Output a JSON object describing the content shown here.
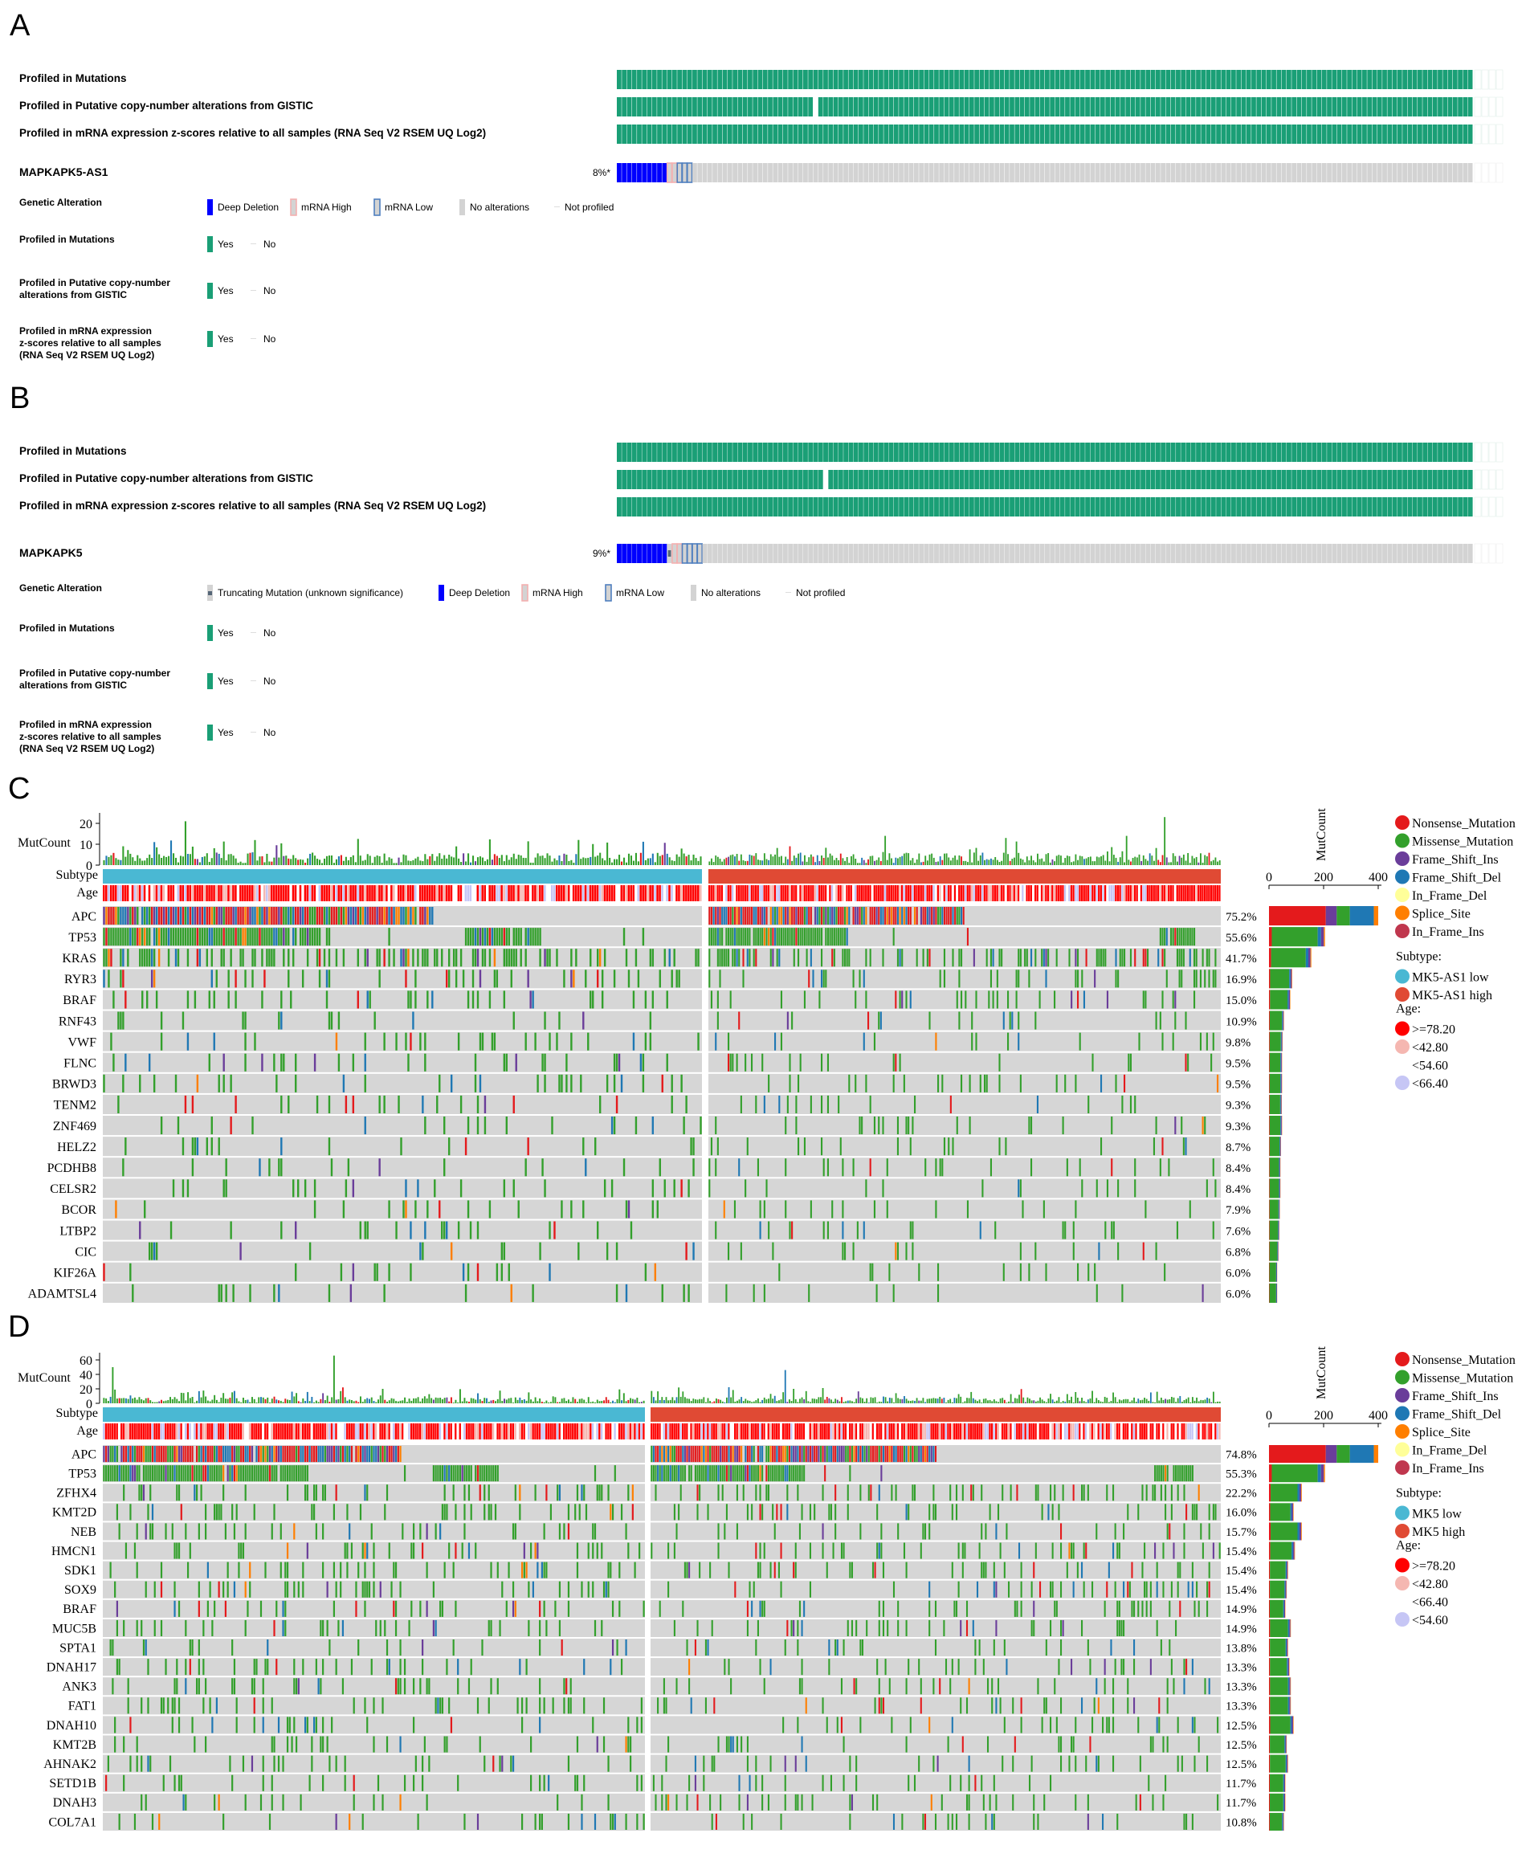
{
  "palette": {
    "green": "#1a9f76",
    "nonsense": "#e41a1c",
    "missense": "#33a02c",
    "frameshift_ins": "#6a3d9a",
    "frameshift_del": "#1f78b4",
    "inframe_del": "#ffff99",
    "splice": "#ff7f00",
    "inframe_ins": "#c0374e",
    "subtype_low": "#4ab8d3",
    "subtype_high": "#e04a34",
    "deep_del": "#0000ff",
    "mrna_high": "#f4b0b0",
    "mrna_low": "#9bb9de",
    "no_alt": "#d3d3d3",
    "trunc": "#556677",
    "age1": "#ff0000",
    "age2": "#f5b7b1",
    "age3": "#ffffff",
    "age4": "#c6c6f5"
  },
  "panels": [
    {
      "letter": "A",
      "rows": [
        "Profiled in Mutations",
        "Profiled in Putative copy-number alterations from GISTIC",
        "Profiled in mRNA expression z-scores relative to all samples (RNA Seq V2 RSEM UQ Log2)"
      ],
      "gene": "MAPKAPK5-AS1",
      "pct": "8%*",
      "legend": {
        "genetic_title": "Genetic Alteration",
        "genetic_items": [
          "Deep Deletion",
          "mRNA High",
          "mRNA Low",
          "No alterations",
          "Not profiled"
        ],
        "profiled": [
          {
            "title": [
              "Profiled in Mutations"
            ],
            "yes": "Yes",
            "no": "No"
          },
          {
            "title": [
              "Profiled in Putative copy-number",
              "alterations from GISTIC"
            ],
            "yes": "Yes",
            "no": "No"
          },
          {
            "title": [
              "Profiled in mRNA expression",
              "z-scores relative to all samples",
              "(RNA Seq V2 RSEM UQ Log2)"
            ],
            "yes": "Yes",
            "no": "No"
          }
        ]
      },
      "alteration_counts": {
        "deep_deletion": 10,
        "truncating": 0,
        "mrna_high": 2,
        "mrna_low": 3
      }
    },
    {
      "letter": "B",
      "rows": [
        "Profiled in Mutations",
        "Profiled in Putative copy-number alterations from GISTIC",
        "Profiled in mRNA expression z-scores relative to all samples (RNA Seq V2 RSEM UQ Log2)"
      ],
      "gene": "MAPKAPK5",
      "pct": "9%*",
      "legend": {
        "genetic_title": "Genetic Alteration",
        "genetic_items": [
          "Truncating Mutation (unknown significance)",
          "Deep Deletion",
          "mRNA High",
          "mRNA Low",
          "No alterations",
          "Not profiled"
        ],
        "profiled": [
          {
            "title": [
              "Profiled in Mutations"
            ],
            "yes": "Yes",
            "no": "No"
          },
          {
            "title": [
              "Profiled in Putative copy-number",
              "alterations from GISTIC"
            ],
            "yes": "Yes",
            "no": "No"
          },
          {
            "title": [
              "Profiled in mRNA expression",
              "z-scores relative to all samples",
              "(RNA Seq V2 RSEM UQ Log2)"
            ],
            "yes": "Yes",
            "no": "No"
          }
        ]
      },
      "alteration_counts": {
        "deep_deletion": 10,
        "truncating": 1,
        "mrna_high": 2,
        "mrna_low": 4
      }
    }
  ],
  "chart_data": [
    {
      "type": "heatmap",
      "panel": "C",
      "mutcount_label": "MutCount",
      "mutcount_ticks": [
        "20",
        "10",
        "0"
      ],
      "mutcount_ylim": [
        0,
        25
      ],
      "subtype_label": "Subtype",
      "age_label": "Age",
      "genes": [
        "APC",
        "TP53",
        "KRAS",
        "RYR3",
        "BRAF",
        "RNF43",
        "VWF",
        "FLNC",
        "BRWD3",
        "TENM2",
        "ZNF469",
        "HELZ2",
        "PCDHB8",
        "CELSR2",
        "BCOR",
        "LTBP2",
        "CIC",
        "KIF26A",
        "ADAMTSL4"
      ],
      "percents": [
        "75.2%",
        "55.6%",
        "41.7%",
        "16.9%",
        "15.0%",
        "10.9%",
        "9.8%",
        "9.5%",
        "9.5%",
        "9.3%",
        "9.3%",
        "8.7%",
        "8.4%",
        "8.4%",
        "7.9%",
        "7.6%",
        "6.8%",
        "6.0%",
        "6.0%"
      ],
      "gene_mutcount": [
        400,
        205,
        155,
        85,
        78,
        55,
        50,
        48,
        48,
        47,
        48,
        44,
        42,
        42,
        40,
        38,
        35,
        30,
        30
      ],
      "right_axis_label": "MutCount",
      "right_axis_ticks": [
        "0",
        "200",
        "400"
      ],
      "right_axis_max": 400,
      "legend": {
        "mutation_types": [
          "Nonsense_Mutation",
          "Missense_Mutation",
          "Frame_Shift_Ins",
          "Frame_Shift_Del",
          "In_Frame_Del",
          "Splice_Site",
          "In_Frame_Ins"
        ],
        "subtype_title": "Subtype:",
        "subtypes": [
          "MK5-AS1 low",
          "MK5-AS1 high"
        ],
        "age_title": "Age:",
        "ages": [
          ">=78.20",
          "<42.80",
          "<54.60",
          "<66.40"
        ]
      }
    },
    {
      "type": "heatmap",
      "panel": "D",
      "mutcount_label": "MutCount",
      "mutcount_ticks": [
        "60",
        "40",
        "20",
        "0"
      ],
      "mutcount_ylim": [
        0,
        70
      ],
      "subtype_label": "Subtype",
      "age_label": "Age",
      "genes": [
        "APC",
        "TP53",
        "ZFHX4",
        "KMT2D",
        "NEB",
        "HMCN1",
        "SDK1",
        "SOX9",
        "BRAF",
        "MUC5B",
        "SPTA1",
        "DNAH17",
        "ANK3",
        "FAT1",
        "DNAH10",
        "KMT2B",
        "AHNAK2",
        "SETD1B",
        "DNAH3",
        "COL7A1"
      ],
      "percents": [
        "74.8%",
        "55.3%",
        "22.2%",
        "16.0%",
        "15.7%",
        "15.4%",
        "15.4%",
        "15.4%",
        "14.9%",
        "14.9%",
        "13.8%",
        "13.3%",
        "13.3%",
        "13.3%",
        "12.5%",
        "12.5%",
        "12.5%",
        "11.7%",
        "11.7%",
        "10.8%"
      ],
      "gene_mutcount": [
        400,
        205,
        120,
        90,
        120,
        95,
        70,
        65,
        60,
        80,
        70,
        75,
        80,
        80,
        90,
        65,
        70,
        60,
        60,
        55
      ],
      "right_axis_label": "MutCount",
      "right_axis_ticks": [
        "0",
        "200",
        "400"
      ],
      "right_axis_max": 400,
      "legend": {
        "mutation_types": [
          "Nonsense_Mutation",
          "Missense_Mutation",
          "Frame_Shift_Ins",
          "Frame_Shift_Del",
          "Splice_Site",
          "In_Frame_Del",
          "In_Frame_Ins"
        ],
        "subtype_title": "Subtype:",
        "subtypes": [
          "MK5 low",
          "MK5 high"
        ],
        "age_title": "Age:",
        "ages": [
          ">=78.20",
          "<42.80",
          "<66.40",
          "<54.60"
        ]
      }
    }
  ]
}
